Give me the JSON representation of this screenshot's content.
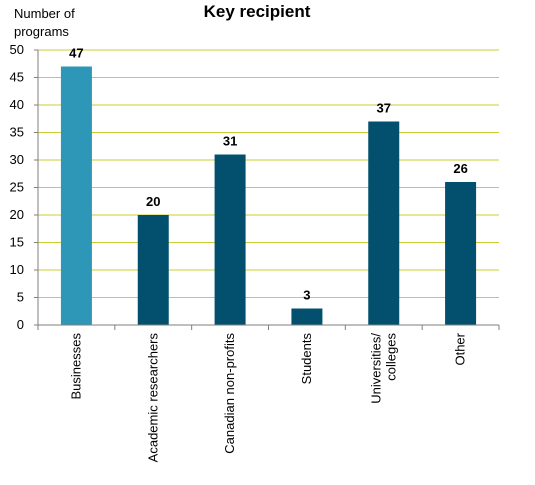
{
  "chart_data": {
    "type": "bar",
    "title": "Key recipient",
    "ylabel_lines": [
      "Number of",
      "programs"
    ],
    "xlabel": "",
    "categories": [
      [
        "Businesses"
      ],
      [
        "Academic researchers"
      ],
      [
        "Canadian non-profits"
      ],
      [
        "Students"
      ],
      [
        "Universities/",
        "colleges"
      ],
      [
        "Other"
      ]
    ],
    "values": [
      47,
      20,
      31,
      3,
      37,
      26
    ],
    "highlight_index": 0,
    "ylim": [
      0,
      50
    ],
    "yticks": [
      0,
      5,
      10,
      15,
      20,
      25,
      30,
      35,
      40,
      45,
      50
    ],
    "grid": true,
    "legend": "none",
    "colors": {
      "bar": "#02506e",
      "highlight": "#2e97b8",
      "grid": "#cccc33",
      "axis": "#7f7f7f"
    }
  }
}
